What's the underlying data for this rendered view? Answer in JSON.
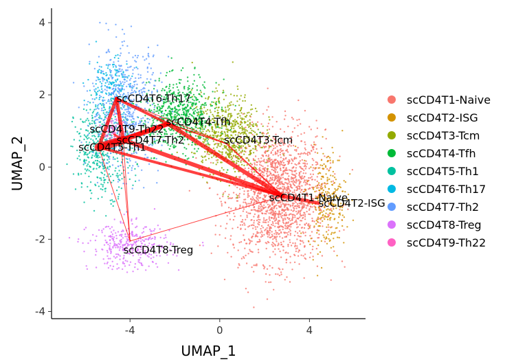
{
  "chart_data": {
    "type": "scatter",
    "xlabel": "UMAP_1",
    "ylabel": "UMAP_2",
    "xlim": [
      -7.5,
      6.5
    ],
    "ylim": [
      -4.2,
      4.4
    ],
    "xticks": [
      -4,
      0,
      4
    ],
    "yticks": [
      -4,
      -2,
      0,
      2,
      4
    ],
    "grid": false,
    "legend_position": "right",
    "series": [
      {
        "name": "scCD4T1-Naive",
        "color": "#F8766D",
        "center": [
          2.6,
          -0.8
        ],
        "spread": [
          1.5,
          1.3
        ]
      },
      {
        "name": "scCD4T2-ISG",
        "color": "#D39200",
        "center": [
          4.8,
          -0.9
        ],
        "spread": [
          0.6,
          1.0
        ]
      },
      {
        "name": "scCD4T3-Tcm",
        "color": "#93AA00",
        "center": [
          0.3,
          0.9
        ],
        "spread": [
          1.1,
          0.8
        ]
      },
      {
        "name": "scCD4T4-Tfh",
        "color": "#00BA38",
        "center": [
          -1.8,
          1.4
        ],
        "spread": [
          1.2,
          0.7
        ]
      },
      {
        "name": "scCD4T5-Th1",
        "color": "#00C19F",
        "center": [
          -5.2,
          0.5
        ],
        "spread": [
          0.9,
          0.9
        ]
      },
      {
        "name": "scCD4T6-Th17",
        "color": "#00B9E3",
        "center": [
          -4.9,
          2.2
        ],
        "spread": [
          0.7,
          0.6
        ]
      },
      {
        "name": "scCD4T7-Th2",
        "color": "#619CFF",
        "center": [
          -4.2,
          1.6
        ],
        "spread": [
          1.1,
          1.2
        ]
      },
      {
        "name": "scCD4T8-Treg",
        "color": "#DB72FB",
        "center": [
          -4.0,
          -2.2
        ],
        "spread": [
          1.3,
          0.45
        ]
      },
      {
        "name": "scCD4T9-Th22",
        "color": "#FF61C3",
        "center": [
          -4.7,
          1.1
        ],
        "spread": [
          0.3,
          0.3
        ]
      }
    ],
    "cluster_labels": [
      {
        "text": "scCD4T6-Th17",
        "x": -4.6,
        "y": 1.9
      },
      {
        "text": "scCD4T9-Th22",
        "x": -5.8,
        "y": 1.05
      },
      {
        "text": "scCD4T5-Th1",
        "x": -6.3,
        "y": 0.55
      },
      {
        "text": "scCD4T7-Th2",
        "x": -4.6,
        "y": 0.75
      },
      {
        "text": "scCD4T4-Tfh",
        "x": -2.4,
        "y": 1.25
      },
      {
        "text": "scCD4T3-Tcm",
        "x": 0.2,
        "y": 0.75
      },
      {
        "text": "scCD4T1-Naive",
        "x": 2.2,
        "y": -0.85
      },
      {
        "text": "scCD4T2-ISG",
        "x": 4.4,
        "y": -1.0
      },
      {
        "text": "scCD4T8-Treg",
        "x": -4.3,
        "y": -2.3
      }
    ],
    "trajectory_nodes": {
      "Th17": [
        -4.6,
        1.9
      ],
      "Th22": [
        -4.7,
        0.9
      ],
      "Th1": [
        -5.4,
        0.55
      ],
      "Th2": [
        -4.3,
        0.75
      ],
      "Tfh": [
        -2.3,
        1.2
      ],
      "Tcm": [
        0.3,
        0.65
      ],
      "Naive": [
        2.8,
        -0.8
      ],
      "ISG": [
        4.4,
        -1.0
      ],
      "Treg": [
        -4.0,
        -2.05
      ]
    },
    "trajectory_edges": [
      {
        "from": "Th1",
        "to": "Th2",
        "weight": 12
      },
      {
        "from": "Th1",
        "to": "Th17",
        "weight": 5
      },
      {
        "from": "Th17",
        "to": "Th2",
        "weight": 5
      },
      {
        "from": "Th2",
        "to": "Tfh",
        "weight": 7
      },
      {
        "from": "Th1",
        "to": "Tfh",
        "weight": 6
      },
      {
        "from": "Th17",
        "to": "Tfh",
        "weight": 4
      },
      {
        "from": "Tfh",
        "to": "Naive",
        "weight": 6
      },
      {
        "from": "Th2",
        "to": "Naive",
        "weight": 6
      },
      {
        "from": "Th1",
        "to": "Naive",
        "weight": 4
      },
      {
        "from": "Naive",
        "to": "ISG",
        "weight": 5
      },
      {
        "from": "Tcm",
        "to": "Naive",
        "weight": 2
      },
      {
        "from": "Tfh",
        "to": "Tcm",
        "weight": 2
      },
      {
        "from": "Th17",
        "to": "Tcm",
        "weight": 1
      },
      {
        "from": "Th22",
        "to": "Th2",
        "weight": 3
      },
      {
        "from": "Th17",
        "to": "Treg",
        "weight": 1
      },
      {
        "from": "Th1",
        "to": "Treg",
        "weight": 1
      },
      {
        "from": "Treg",
        "to": "Naive",
        "weight": 1
      },
      {
        "from": "Th2",
        "to": "Treg",
        "weight": 1
      }
    ],
    "edge_color": "#FF0000"
  }
}
